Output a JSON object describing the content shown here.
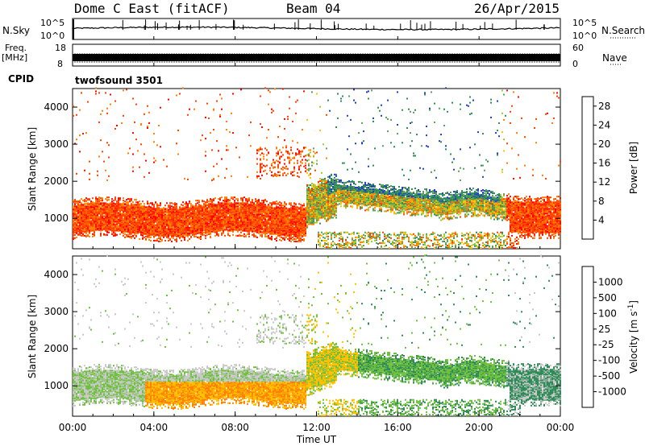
{
  "header": {
    "station": "Dome C East (fitACF)",
    "beam": "Beam 04",
    "date": "26/Apr/2015"
  },
  "panels_top": {
    "nsky_label": "N.Sky",
    "nsky_ticks": [
      "10^5",
      "10^0"
    ],
    "nsearch_label": "N.Search",
    "nsearch_ticks": [
      "10^5",
      "10^0"
    ],
    "freq_label": "Freq.",
    "freq_unit": "[MHz]",
    "freq_ticks": [
      "18",
      "8"
    ],
    "nave_label": "Nave",
    "nave_ticks": [
      "60",
      "0"
    ],
    "cpid_label": "CPID",
    "cpid_value": "twofsound 3501"
  },
  "chart_data": [
    {
      "type": "heatmap",
      "name": "power",
      "ylabel": "Slant Range [km]",
      "ylim": [
        180,
        4500
      ],
      "yticks": [
        1000,
        2000,
        3000,
        4000
      ],
      "xlim": [
        0,
        24
      ],
      "colorbar": {
        "label": "Power [dB]",
        "ticks": [
          4,
          8,
          12,
          16,
          20,
          24,
          28
        ],
        "range": [
          0,
          30
        ],
        "colors": [
          "#0000ff",
          "#2040c0",
          "#2e8b57",
          "#5aa05a",
          "#9acd32",
          "#ffc000",
          "#ff8000",
          "#ff4000",
          "#ff0000"
        ]
      }
    },
    {
      "type": "heatmap",
      "name": "velocity",
      "ylabel": "Slant Range [km]",
      "ylim": [
        180,
        4500
      ],
      "yticks": [
        1000,
        2000,
        3000,
        4000
      ],
      "xlim": [
        0,
        24
      ],
      "xlabel": "Time UT",
      "xticks": [
        "00:00",
        "04:00",
        "08:00",
        "12:00",
        "16:00",
        "20:00",
        "00:00"
      ],
      "colorbar": {
        "label": "Velocity [m s",
        "label_sup": "-1",
        "label_end": "]",
        "ticks": [
          "1000",
          "500",
          "100",
          "25",
          "-25",
          "-100",
          "-500",
          "-1000"
        ],
        "colors": [
          "#2040b0",
          "#3060c0",
          "#2e8b57",
          "#70c040",
          "#c8c8c8",
          "#ffc000",
          "#ff8000",
          "#ff5000",
          "#ff0000"
        ]
      }
    }
  ]
}
